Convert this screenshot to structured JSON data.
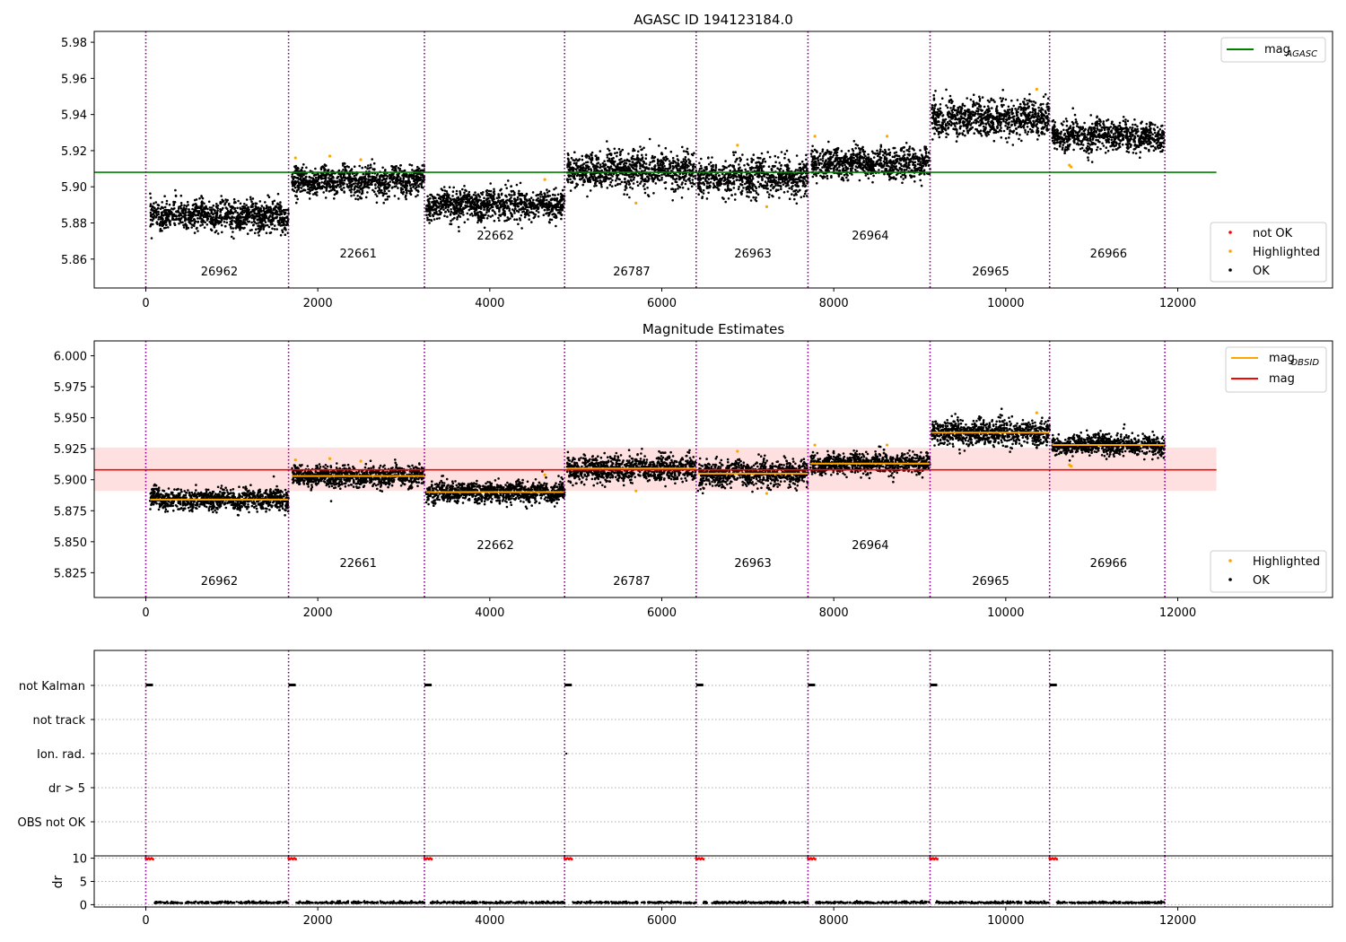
{
  "colors": {
    "ok": "#000000",
    "highlighted": "#ffa500",
    "not_ok": "#ff0000",
    "mag_agasc_line": "#008000",
    "mag_obsid_line": "#ffa500",
    "mag_line": "#ff0000",
    "mag_band": "#ffe0e0",
    "obsid_boundary": "#800080"
  },
  "chart_data": [
    {
      "type": "scatter",
      "title": "AGASC ID 194123184.0",
      "xlim": [
        -600,
        13800
      ],
      "ylim": [
        5.844,
        5.986
      ],
      "xticks": [
        "0",
        "2000",
        "4000",
        "6000",
        "8000",
        "10000",
        "12000"
      ],
      "yticks": [
        "5.86",
        "5.88",
        "5.90",
        "5.92",
        "5.94",
        "5.96",
        "5.98"
      ],
      "grid": false,
      "obsid_boundaries": [
        0,
        1660,
        3240,
        4870,
        6400,
        7700,
        9120,
        10510,
        11850
      ],
      "obsids": [
        {
          "label": "26962",
          "x_range": [
            50,
            1660
          ],
          "mean_mag": 5.884,
          "spread": 0.004,
          "label_y": 5.849
        },
        {
          "label": "22661",
          "x_range": [
            1700,
            3240
          ],
          "mean_mag": 5.903,
          "spread": 0.004,
          "label_y": 5.859
        },
        {
          "label": "22662",
          "x_range": [
            3260,
            4870
          ],
          "mean_mag": 5.89,
          "spread": 0.004,
          "label_y": 5.869
        },
        {
          "label": "26787",
          "x_range": [
            4900,
            6400
          ],
          "mean_mag": 5.909,
          "spread": 0.005,
          "label_y": 5.849
        },
        {
          "label": "26963",
          "x_range": [
            6420,
            7700
          ],
          "mean_mag": 5.905,
          "spread": 0.005,
          "label_y": 5.859
        },
        {
          "label": "26964",
          "x_range": [
            7730,
            9120
          ],
          "mean_mag": 5.913,
          "spread": 0.004,
          "label_y": 5.869
        },
        {
          "label": "26965",
          "x_range": [
            9140,
            10510
          ],
          "mean_mag": 5.938,
          "spread": 0.005,
          "label_y": 5.849
        },
        {
          "label": "26966",
          "x_range": [
            10540,
            11850
          ],
          "mean_mag": 5.928,
          "spread": 0.004,
          "label_y": 5.859
        }
      ],
      "highlighted_points": [
        [
          1740,
          5.916
        ],
        [
          2140,
          5.917
        ],
        [
          2500,
          5.915
        ],
        [
          4640,
          5.904
        ],
        [
          5700,
          5.891
        ],
        [
          6880,
          5.923
        ],
        [
          7220,
          5.889
        ],
        [
          7780,
          5.928
        ],
        [
          8620,
          5.928
        ],
        [
          10360,
          5.954
        ],
        [
          10740,
          5.912
        ],
        [
          10760,
          5.911
        ]
      ],
      "mag_agasc": 5.908,
      "mag_agasc_x_range": [
        -600,
        12450
      ],
      "legend_top": [
        {
          "label": "mag",
          "sub": "AGASC",
          "kind": "line"
        }
      ],
      "legend_bottom": [
        {
          "label": "not OK",
          "kind": "dot",
          "color_key": "not_ok"
        },
        {
          "label": "Highlighted",
          "kind": "dot",
          "color_key": "highlighted"
        },
        {
          "label": "OK",
          "kind": "dot",
          "color_key": "ok"
        }
      ]
    },
    {
      "type": "scatter",
      "title": "Magnitude Estimates",
      "xlim": [
        -600,
        13800
      ],
      "ylim": [
        5.805,
        6.012
      ],
      "xticks": [
        "0",
        "2000",
        "4000",
        "6000",
        "8000",
        "10000",
        "12000"
      ],
      "yticks": [
        "5.825",
        "5.850",
        "5.875",
        "5.900",
        "5.925",
        "5.950",
        "5.975",
        "6.000"
      ],
      "grid": false,
      "mag": 5.908,
      "mag_band": [
        5.891,
        5.926
      ],
      "mag_x_range": [
        -600,
        12450
      ],
      "obsid_mags": [
        5.884,
        5.903,
        5.89,
        5.909,
        5.905,
        5.913,
        5.938,
        5.928
      ],
      "legend_top": [
        {
          "label": "mag",
          "sub": "OBSID",
          "kind": "line",
          "color_key": "mag_obsid_line"
        },
        {
          "label": "mag",
          "sub": "",
          "kind": "line",
          "color_key": "mag_line"
        }
      ],
      "legend_bottom": [
        {
          "label": "Highlighted",
          "kind": "dot",
          "color_key": "highlighted"
        },
        {
          "label": "OK",
          "kind": "dot",
          "color_key": "ok"
        }
      ]
    },
    {
      "type": "scatter",
      "title": "",
      "flags": [
        "not Kalman",
        "not track",
        "Ion. rad.",
        "dr > 5",
        "OBS not OK"
      ],
      "not_kalman_x": [
        0,
        1660,
        3240,
        4870,
        6400,
        7700,
        9120,
        10510
      ],
      "ion_rad_x": [
        4870
      ]
    },
    {
      "type": "scatter",
      "title": "",
      "ylabel": "dr",
      "ylim": [
        -0.5,
        10.5
      ],
      "yticks": [
        "0",
        "5",
        "10"
      ],
      "xticks": [
        "0",
        "2000",
        "4000",
        "6000",
        "8000",
        "10000",
        "12000"
      ],
      "dr_spike_x": [
        0,
        1660,
        3240,
        4870,
        6400,
        7700,
        9120,
        10510
      ],
      "dr_spike_value": 10,
      "dr_baseline": 0.3
    }
  ]
}
